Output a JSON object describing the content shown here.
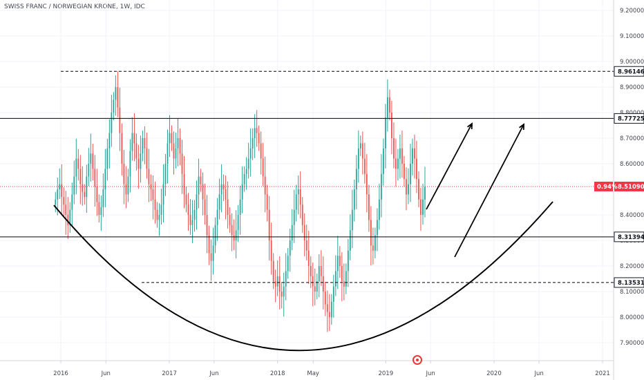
{
  "chart_data": {
    "type": "candlestick",
    "title": "SWISS FRANC / NORWEGIAN KRONE, 1W, IDC",
    "y_ticks": [
      7.9,
      8.0,
      8.1,
      8.2,
      8.3,
      8.4,
      8.5,
      8.6,
      8.7,
      8.8,
      8.9,
      9.0,
      9.1,
      9.2
    ],
    "y_tick_labels": [
      "7.90000",
      "8.00000",
      "8.10000",
      "8.20000",
      "8.30000",
      "8.40000",
      "8.50000",
      "8.60000",
      "8.70000",
      "8.80000",
      "8.90000",
      "9.00000",
      "9.10000",
      "9.20000"
    ],
    "ylim": [
      7.8,
      9.23
    ],
    "x_ticks": [
      {
        "label": "2016",
        "date": "2016-01-01"
      },
      {
        "label": "Jun",
        "date": "2016-06-01"
      },
      {
        "label": "2017",
        "date": "2017-01-01"
      },
      {
        "label": "Jun",
        "date": "2017-06-01"
      },
      {
        "label": "2018",
        "date": "2018-01-01"
      },
      {
        "label": "May",
        "date": "2018-05-01"
      },
      {
        "label": "2019",
        "date": "2019-01-01"
      },
      {
        "label": "Jun",
        "date": "2019-06-01"
      },
      {
        "label": "2020",
        "date": "2020-01-01"
      },
      {
        "label": "Jun",
        "date": "2020-06-01"
      },
      {
        "label": "2021",
        "date": "2021-01-01"
      }
    ],
    "x_range": [
      "2015-05-01",
      "2021-03-01"
    ],
    "levels": [
      {
        "value": 8.96146,
        "label": "8.96146",
        "style": "dashed"
      },
      {
        "value": 8.77725,
        "label": "8.77725",
        "style": "solid"
      },
      {
        "value": 8.31394,
        "label": "8.31394",
        "style": "solid"
      },
      {
        "value": 8.13531,
        "label": "8.13531",
        "style": "dashed"
      }
    ],
    "last_price": {
      "value": 8.5109,
      "label": "8.51090",
      "change": "0.94%"
    },
    "colors": {
      "up": "#26a69a",
      "down": "#ef5350",
      "price": "#f23645",
      "text": "#434651"
    },
    "series_end_date": "2019-05-13",
    "weekly_closes": [
      8.46,
      8.5,
      8.52,
      8.47,
      8.44,
      8.4,
      8.36,
      8.42,
      8.48,
      8.55,
      8.62,
      8.58,
      8.52,
      8.49,
      8.47,
      8.55,
      8.6,
      8.64,
      8.58,
      8.51,
      8.45,
      8.4,
      8.43,
      8.5,
      8.58,
      8.66,
      8.72,
      8.8,
      8.85,
      8.9,
      8.82,
      8.72,
      8.6,
      8.52,
      8.48,
      8.55,
      8.65,
      8.72,
      8.68,
      8.62,
      8.58,
      8.64,
      8.7,
      8.66,
      8.58,
      8.52,
      8.5,
      8.46,
      8.42,
      8.38,
      8.4,
      8.44,
      8.52,
      8.6,
      8.68,
      8.72,
      8.68,
      8.62,
      8.66,
      8.7,
      8.64,
      8.56,
      8.48,
      8.44,
      8.4,
      8.36,
      8.38,
      8.42,
      8.48,
      8.55,
      8.52,
      8.46,
      8.4,
      8.32,
      8.25,
      8.22,
      8.28,
      8.36,
      8.42,
      8.48,
      8.52,
      8.5,
      8.46,
      8.4,
      8.36,
      8.32,
      8.3,
      8.34,
      8.4,
      8.46,
      8.52,
      8.56,
      8.58,
      8.62,
      8.66,
      8.7,
      8.74,
      8.72,
      8.68,
      8.62,
      8.55,
      8.48,
      8.42,
      8.3,
      8.22,
      8.14,
      8.12,
      8.16,
      8.1,
      8.08,
      8.12,
      8.18,
      8.24,
      8.3,
      8.36,
      8.42,
      8.48,
      8.5,
      8.44,
      8.36,
      8.3,
      8.26,
      8.2,
      8.16,
      8.12,
      8.1,
      8.14,
      8.2,
      8.16,
      8.1,
      8.05,
      8.02,
      8.0,
      8.06,
      8.12,
      8.18,
      8.24,
      8.2,
      8.14,
      8.12,
      8.18,
      8.26,
      8.34,
      8.42,
      8.5,
      8.58,
      8.66,
      8.68,
      8.62,
      8.56,
      8.48,
      8.38,
      8.28,
      8.26,
      8.32,
      8.38,
      8.46,
      8.56,
      8.66,
      8.78,
      8.86,
      8.8,
      8.7,
      8.62,
      8.58,
      8.62,
      8.66,
      8.6,
      8.54,
      8.48,
      8.52,
      8.6,
      8.66,
      8.62,
      8.54,
      8.46,
      8.4,
      8.46,
      8.51
    ]
  }
}
